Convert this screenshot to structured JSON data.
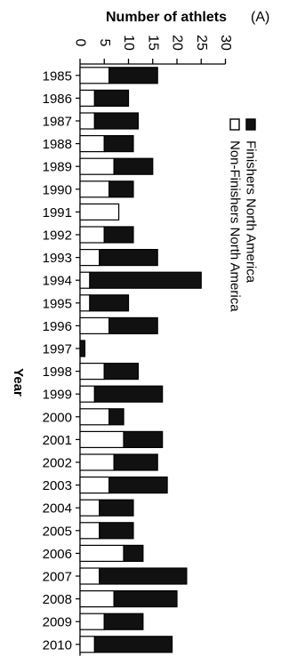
{
  "chart_data": {
    "type": "bar",
    "orientation": "horizontal",
    "stacked": true,
    "panel_label": "(A)",
    "xlabel": "Number of athlets",
    "ylabel": "Year",
    "xlim": [
      0,
      30
    ],
    "x_ticks": [
      "0",
      "5",
      "10",
      "15",
      "20",
      "25",
      "30"
    ],
    "legend_position": "right",
    "categories": [
      "1985",
      "1986",
      "1987",
      "1988",
      "1989",
      "1990",
      "1991",
      "1992",
      "1993",
      "1994",
      "1995",
      "1996",
      "1997",
      "1998",
      "1999",
      "2000",
      "2001",
      "2002",
      "2003",
      "2004",
      "2005",
      "2006",
      "2007",
      "2008",
      "2009",
      "2010"
    ],
    "series": [
      {
        "name": "Non-Finishers North America",
        "color": "#ffffff",
        "values": [
          6,
          3,
          3,
          5,
          7,
          6,
          8,
          5,
          4,
          2,
          2,
          6,
          0,
          5,
          3,
          6,
          9,
          7,
          6,
          4,
          4,
          9,
          4,
          7,
          5,
          3
        ]
      },
      {
        "name": "Finishers North America",
        "color": "#111111",
        "values": [
          10,
          7,
          9,
          6,
          8,
          5,
          0,
          6,
          12,
          23,
          8,
          10,
          1,
          7,
          14,
          3,
          8,
          9,
          12,
          7,
          7,
          4,
          18,
          13,
          8,
          16
        ]
      }
    ],
    "grid": false
  }
}
